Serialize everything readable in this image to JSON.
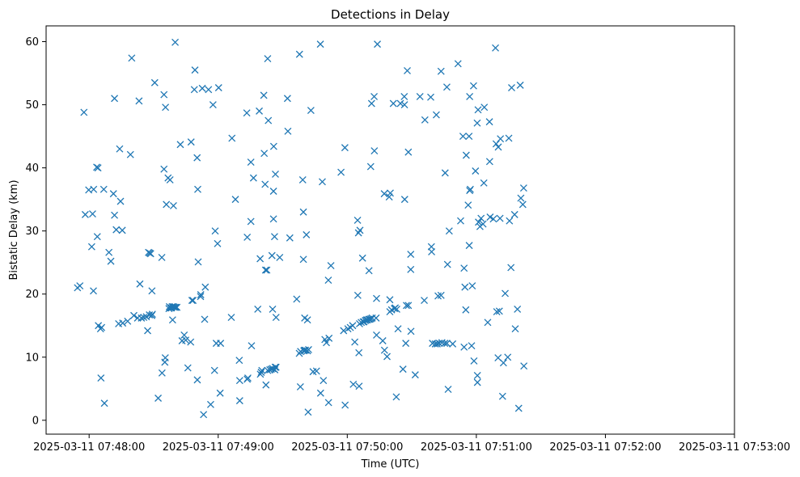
{
  "chart_data": {
    "type": "scatter",
    "title": "Detections in Delay",
    "xlabel": "Time (UTC)",
    "ylabel": "Bistatic Delay (km)",
    "marker": "x",
    "color": "#1f77b4",
    "x_unit": "seconds after 2025-03-11 07:47:40 UTC",
    "xlim": [
      0,
      320
    ],
    "ylim": [
      -2.2,
      62.5
    ],
    "x_ticks": [
      {
        "value": 20,
        "label": "2025-03-11 07:48:00"
      },
      {
        "value": 80,
        "label": "2025-03-11 07:49:00"
      },
      {
        "value": 140,
        "label": "2025-03-11 07:50:00"
      },
      {
        "value": 200,
        "label": "2025-03-11 07:51:00"
      },
      {
        "value": 260,
        "label": "2025-03-11 07:52:00"
      },
      {
        "value": 320,
        "label": "2025-03-11 07:53:00"
      }
    ],
    "y_ticks": [
      {
        "value": 0,
        "label": "0"
      },
      {
        "value": 10,
        "label": "10"
      },
      {
        "value": 20,
        "label": "20"
      },
      {
        "value": 30,
        "label": "30"
      },
      {
        "value": 40,
        "label": "40"
      },
      {
        "value": 50,
        "label": "50"
      },
      {
        "value": 60,
        "label": "60"
      }
    ],
    "points": [
      [
        14.6,
        21
      ],
      [
        15.7,
        21.3
      ],
      [
        17.6,
        48.8
      ],
      [
        18.2,
        32.6
      ],
      [
        19.8,
        36.5
      ],
      [
        21.2,
        27.5
      ],
      [
        21.6,
        32.7
      ],
      [
        22.1,
        36.6
      ],
      [
        22.0,
        20.5
      ],
      [
        23.5,
        40.1
      ],
      [
        23.8,
        29.1
      ],
      [
        24.1,
        40
      ],
      [
        24.3,
        15
      ],
      [
        25.3,
        14.5
      ],
      [
        25.8,
        14.7
      ],
      [
        25.5,
        6.7
      ],
      [
        26.8,
        36.6
      ],
      [
        27.1,
        2.7
      ],
      [
        29.2,
        26.6
      ],
      [
        30.1,
        25.2
      ],
      [
        31.3,
        35.9
      ],
      [
        31.8,
        32.5
      ],
      [
        31.8,
        51
      ],
      [
        32.6,
        30.2
      ],
      [
        33.7,
        15.3
      ],
      [
        34.2,
        43
      ],
      [
        34.6,
        34.7
      ],
      [
        35.4,
        30.1
      ],
      [
        35.6,
        15.4
      ],
      [
        37.9,
        15.7
      ],
      [
        39.2,
        42.1
      ],
      [
        39.8,
        57.4
      ],
      [
        40.8,
        16.6
      ],
      [
        42.5,
        16.2
      ],
      [
        43.2,
        50.6
      ],
      [
        43.6,
        21.6
      ],
      [
        44.3,
        16.2
      ],
      [
        45.4,
        16.3
      ],
      [
        46.6,
        16.4
      ],
      [
        47.2,
        14.2
      ],
      [
        47.6,
        26.6
      ],
      [
        48.1,
        26.5
      ],
      [
        48.0,
        16.7
      ],
      [
        48.6,
        26.4
      ],
      [
        49.1,
        16.6
      ],
      [
        49.4,
        16.8
      ],
      [
        49.2,
        20.5
      ],
      [
        50.5,
        53.5
      ],
      [
        52.1,
        3.5
      ],
      [
        53.8,
        25.8
      ],
      [
        53.9,
        7.5
      ],
      [
        54.8,
        39.8
      ],
      [
        54.8,
        51.6
      ],
      [
        55.2,
        9.2
      ],
      [
        55.4,
        9.9
      ],
      [
        55.5,
        49.6
      ],
      [
        55.9,
        34.2
      ],
      [
        56.7,
        38.4
      ],
      [
        57.1,
        17.7
      ],
      [
        57.3,
        18
      ],
      [
        57.6,
        38.1
      ],
      [
        57.8,
        17.8
      ],
      [
        58.3,
        17.8
      ],
      [
        58.6,
        18
      ],
      [
        58.8,
        15.9
      ],
      [
        59.2,
        34
      ],
      [
        59.2,
        18
      ],
      [
        59.6,
        17.9
      ],
      [
        60.0,
        59.9
      ],
      [
        60.2,
        17.9
      ],
      [
        60.8,
        17.9
      ],
      [
        62.4,
        43.7
      ],
      [
        64.2,
        13.5
      ],
      [
        64.9,
        12.7
      ],
      [
        65.9,
        8.3
      ],
      [
        67.4,
        44.1
      ],
      [
        67.2,
        12.4
      ],
      [
        67.8,
        19
      ],
      [
        68.3,
        19
      ],
      [
        69.2,
        55.5
      ],
      [
        68.9,
        52.4
      ],
      [
        70.2,
        41.6
      ],
      [
        70.5,
        36.6
      ],
      [
        70.3,
        6.4
      ],
      [
        70.7,
        25.1
      ],
      [
        71.8,
        19.6
      ],
      [
        71.9,
        19.9
      ],
      [
        72.6,
        52.6
      ],
      [
        73.2,
        0.9
      ],
      [
        73.7,
        16
      ],
      [
        74.0,
        21.1
      ],
      [
        75.5,
        52.4
      ],
      [
        76.5,
        2.5
      ],
      [
        77.6,
        50
      ],
      [
        78.3,
        7.9
      ],
      [
        78.6,
        30
      ],
      [
        79.1,
        12.2
      ],
      [
        79.7,
        28
      ],
      [
        80.2,
        52.7
      ],
      [
        81.1,
        12.2
      ],
      [
        80.9,
        4.3
      ],
      [
        86.4,
        44.7
      ],
      [
        86.1,
        16.3
      ],
      [
        88.0,
        35
      ],
      [
        89.8,
        9.5
      ],
      [
        90.0,
        3.1
      ],
      [
        90.0,
        6.3
      ],
      [
        93.3,
        48.7
      ],
      [
        93.5,
        29
      ],
      [
        93.5,
        6.5
      ],
      [
        93.8,
        6.7
      ],
      [
        95.2,
        40.9
      ],
      [
        95.2,
        31.5
      ],
      [
        95.5,
        11.8
      ],
      [
        96.4,
        38.4
      ],
      [
        98.4,
        17.6
      ],
      [
        99.1,
        49
      ],
      [
        99.5,
        25.6
      ],
      [
        99.6,
        7.3
      ],
      [
        100.0,
        7.6
      ],
      [
        100.3,
        7.9
      ],
      [
        101.2,
        51.5
      ],
      [
        101.4,
        42.3
      ],
      [
        101.8,
        37.4
      ],
      [
        102.0,
        23.8
      ],
      [
        102.2,
        5.6
      ],
      [
        102.6,
        23.8
      ],
      [
        103.0,
        57.3
      ],
      [
        103.0,
        7.9
      ],
      [
        103.3,
        47.5
      ],
      [
        104.0,
        8
      ],
      [
        104.7,
        8.1
      ],
      [
        105.0,
        26.1
      ],
      [
        105.3,
        17.6
      ],
      [
        105.3,
        8.2
      ],
      [
        105.7,
        36.3
      ],
      [
        105.7,
        31.9
      ],
      [
        105.8,
        43.4
      ],
      [
        106.2,
        29.1
      ],
      [
        106.5,
        8.4
      ],
      [
        106.3,
        8
      ],
      [
        106.6,
        39
      ],
      [
        106.9,
        16.3
      ],
      [
        106.9,
        8.4
      ],
      [
        108.6,
        25.8
      ],
      [
        112.2,
        51
      ],
      [
        112.4,
        45.8
      ],
      [
        113.3,
        28.9
      ],
      [
        116.5,
        19.2
      ],
      [
        117.8,
        58
      ],
      [
        117.7,
        10.6
      ],
      [
        118.2,
        5.3
      ],
      [
        118.3,
        10.9
      ],
      [
        119.3,
        38.1
      ],
      [
        119.8,
        11
      ],
      [
        119.6,
        33
      ],
      [
        119.6,
        25.5
      ],
      [
        120.1,
        11.1
      ],
      [
        120.2,
        16.2
      ],
      [
        120.6,
        11.1
      ],
      [
        121.0,
        29.4
      ],
      [
        121.5,
        11
      ],
      [
        121.5,
        15.9
      ],
      [
        121.8,
        1.3
      ],
      [
        122.0,
        11.2
      ],
      [
        123.1,
        49.1
      ],
      [
        124.1,
        7.7
      ],
      [
        125.7,
        7.8
      ],
      [
        127.5,
        59.6
      ],
      [
        127.6,
        4.3
      ],
      [
        128.4,
        37.8
      ],
      [
        128.9,
        6.3
      ],
      [
        129.6,
        12.8
      ],
      [
        130.3,
        12.3
      ],
      [
        131.2,
        22.2
      ],
      [
        131.5,
        13
      ],
      [
        131.3,
        2.8
      ],
      [
        132.4,
        24.5
      ],
      [
        137.1,
        39.3
      ],
      [
        138.3,
        14.2
      ],
      [
        138.9,
        43.2
      ],
      [
        139.0,
        2.4
      ],
      [
        140.3,
        14.5
      ],
      [
        141.4,
        14.7
      ],
      [
        142.5,
        15
      ],
      [
        142.8,
        5.7
      ],
      [
        143.5,
        12.4
      ],
      [
        144.8,
        31.7
      ],
      [
        144.9,
        19.8
      ],
      [
        145.2,
        29.7
      ],
      [
        145.4,
        10.7
      ],
      [
        145.5,
        5.4
      ],
      [
        145.7,
        15.3
      ],
      [
        145.9,
        30.1
      ],
      [
        146.5,
        15.5
      ],
      [
        147.1,
        25.7
      ],
      [
        147.4,
        15.6
      ],
      [
        147.8,
        15.6
      ],
      [
        148.4,
        15.8
      ],
      [
        148.9,
        15.9
      ],
      [
        149.4,
        15.9
      ],
      [
        150.0,
        16
      ],
      [
        150.1,
        23.7
      ],
      [
        150.5,
        16
      ],
      [
        150.9,
        40.2
      ],
      [
        151.0,
        16.1
      ],
      [
        151.3,
        50.2
      ],
      [
        151.6,
        16.2
      ],
      [
        152.5,
        51.3
      ],
      [
        152.6,
        42.7
      ],
      [
        153.4,
        16.2
      ],
      [
        153.6,
        19.3
      ],
      [
        153.6,
        13.5
      ],
      [
        154.0,
        59.6
      ],
      [
        156.5,
        12.6
      ],
      [
        157.2,
        35.9
      ],
      [
        157.3,
        11.1
      ],
      [
        158.5,
        10.1
      ],
      [
        159.5,
        35.4
      ],
      [
        159.8,
        19.1
      ],
      [
        159.8,
        17.2
      ],
      [
        160.6,
        17.5
      ],
      [
        161.4,
        50.2
      ],
      [
        161.9,
        17.7
      ],
      [
        162.3,
        17.8
      ],
      [
        162.8,
        3.7
      ],
      [
        163.0,
        17.6
      ],
      [
        163.6,
        14.5
      ],
      [
        164.7,
        50.2
      ],
      [
        165.9,
        8.1
      ],
      [
        166.5,
        51.3
      ],
      [
        166.6,
        50
      ],
      [
        166.7,
        35
      ],
      [
        167.2,
        12.2
      ],
      [
        167.9,
        55.4
      ],
      [
        167.5,
        18.2
      ],
      [
        168.4,
        42.5
      ],
      [
        168.4,
        18.2
      ],
      [
        169.5,
        23.9
      ],
      [
        169.5,
        26.3
      ],
      [
        169.6,
        14.1
      ],
      [
        171.6,
        7.2
      ],
      [
        173.8,
        51.3
      ],
      [
        176.1,
        47.6
      ],
      [
        175.8,
        19
      ],
      [
        178.8,
        51.2
      ],
      [
        179.1,
        27.5
      ],
      [
        179.2,
        26.7
      ],
      [
        179.6,
        12.2
      ],
      [
        180.9,
        12.1
      ],
      [
        181.4,
        48.4
      ],
      [
        181.8,
        12.1
      ],
      [
        182.2,
        19.7
      ],
      [
        182.7,
        12.2
      ],
      [
        183.6,
        55.3
      ],
      [
        183.6,
        19.8
      ],
      [
        184.0,
        12.3
      ],
      [
        185.3,
        12.2
      ],
      [
        185.5,
        39.2
      ],
      [
        186.3,
        12.2
      ],
      [
        186.3,
        52.8
      ],
      [
        186.6,
        24.7
      ],
      [
        186.9,
        4.9
      ],
      [
        187.4,
        30
      ],
      [
        191.5,
        56.5
      ],
      [
        192.7,
        31.6
      ],
      [
        193.8,
        45
      ],
      [
        194.3,
        24.1
      ],
      [
        194.3,
        11.6
      ],
      [
        194.7,
        21.1
      ],
      [
        195.1,
        17.5
      ],
      [
        195.3,
        42
      ],
      [
        196.6,
        45
      ],
      [
        196.7,
        27.7
      ],
      [
        196.9,
        51.3
      ],
      [
        196.9,
        36.4
      ],
      [
        197.2,
        36.6
      ],
      [
        197.8,
        11.8
      ],
      [
        198.1,
        21.3
      ],
      [
        198.7,
        53
      ],
      [
        198.9,
        9.4
      ],
      [
        199.6,
        39.5
      ],
      [
        200.4,
        47.1
      ],
      [
        200.5,
        7.1
      ],
      [
        200.5,
        6
      ],
      [
        200.8,
        49.2
      ],
      [
        201.0,
        31.4
      ],
      [
        202.2,
        32
      ],
      [
        203.1,
        31.1
      ],
      [
        203.5,
        37.6
      ],
      [
        203.7,
        49.6
      ],
      [
        206.1,
        47.3
      ],
      [
        206.2,
        41
      ],
      [
        206.4,
        32.2
      ],
      [
        207.9,
        31.9
      ],
      [
        208.9,
        59
      ],
      [
        209.2,
        43.8
      ],
      [
        209.5,
        17.2
      ],
      [
        210.1,
        9.9
      ],
      [
        210.2,
        43.3
      ],
      [
        210.7,
        17.3
      ],
      [
        211.2,
        44.6
      ],
      [
        211.0,
        32
      ],
      [
        212.2,
        3.8
      ],
      [
        212.6,
        9.1
      ],
      [
        213.4,
        20.1
      ],
      [
        214.6,
        10
      ],
      [
        215.1,
        44.7
      ],
      [
        215.4,
        31.6
      ],
      [
        216.4,
        52.7
      ],
      [
        216.1,
        24.2
      ],
      [
        217.8,
        32.6
      ],
      [
        218.1,
        14.5
      ],
      [
        219.1,
        17.6
      ],
      [
        219.7,
        1.9
      ],
      [
        220.4,
        53.1
      ],
      [
        220.7,
        35.2
      ],
      [
        221.6,
        34.2
      ],
      [
        222.0,
        36.8
      ],
      [
        222.1,
        8.6
      ],
      [
        189.0,
        12.1
      ],
      [
        205.3,
        15.5
      ],
      [
        201.7,
        30.7
      ],
      [
        196.2,
        34.1
      ],
      [
        160.0,
        36.0
      ],
      [
        63.2,
        12.6
      ]
    ]
  }
}
